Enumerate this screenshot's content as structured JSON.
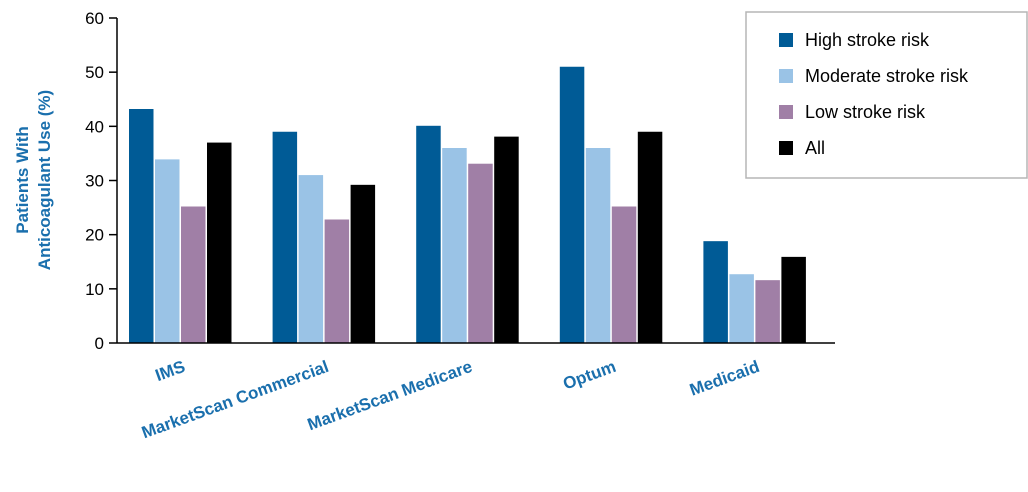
{
  "chart_data": {
    "type": "bar",
    "title": "",
    "xlabel": "",
    "ylabel_lines": [
      "Patients With",
      "Anticoagulant Use (%)"
    ],
    "ylim": [
      0,
      60
    ],
    "yticks": [
      0,
      10,
      20,
      30,
      40,
      50,
      60
    ],
    "categories": [
      "IMS",
      "MarketScan Commercial",
      "MarketScan Medicare",
      "Optum",
      "Medicaid"
    ],
    "series": [
      {
        "name": "High stroke risk",
        "color": "#005b96",
        "values": [
          43.2,
          39.0,
          40.1,
          51.0,
          18.8
        ]
      },
      {
        "name": "Moderate stroke risk",
        "color": "#9ac3e6",
        "values": [
          33.9,
          31.0,
          36.0,
          36.0,
          12.7
        ]
      },
      {
        "name": "Low stroke risk",
        "color": "#a07fa6",
        "values": [
          25.2,
          22.8,
          33.1,
          25.2,
          11.6
        ]
      },
      {
        "name": "All",
        "color": "#000000",
        "values": [
          37.0,
          29.2,
          38.1,
          39.0,
          15.9
        ]
      }
    ],
    "grid": false,
    "legend_position": "top-right",
    "label_color": "#1a6fad"
  }
}
